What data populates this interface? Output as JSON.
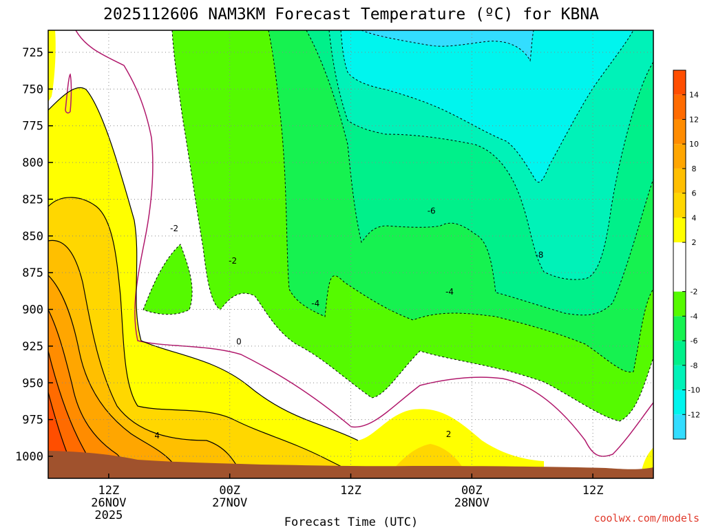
{
  "chart_data": {
    "type": "heatmap",
    "title": "2025112606 NAM3KM Forecast Temperature (ºC) for KBNA",
    "xlabel": "Forecast Time (UTC)",
    "ylabel": "",
    "credit": "coolwx.com/models",
    "x_unit": "hours since 2025-11-26 06Z",
    "xlim": [
      0,
      60
    ],
    "ylim_hpa": [
      1015,
      710
    ],
    "y_ticks": [
      725,
      750,
      775,
      800,
      825,
      850,
      875,
      900,
      925,
      950,
      975,
      1000
    ],
    "x_ticks": [
      {
        "hour": 6,
        "line1": "12Z",
        "line2": "26NOV",
        "line3": "2025"
      },
      {
        "hour": 18,
        "line1": "00Z",
        "line2": "27NOV",
        "line3": ""
      },
      {
        "hour": 30,
        "line1": "12Z",
        "line2": "",
        "line3": ""
      },
      {
        "hour": 42,
        "line1": "00Z",
        "line2": "28NOV",
        "line3": ""
      },
      {
        "hour": 54,
        "line1": "12Z",
        "line2": "",
        "line3": ""
      }
    ],
    "colorbar": {
      "levels": [
        -14,
        -12,
        -10,
        -8,
        -6,
        -4,
        -2,
        2,
        4,
        6,
        8,
        10,
        12,
        14,
        16
      ],
      "tick_labels": [
        "-12",
        "-10",
        "-8",
        "-6",
        "-4",
        "-2",
        "2",
        "4",
        "6",
        "8",
        "10",
        "12",
        "14"
      ],
      "tick_values": [
        -12,
        -10,
        -8,
        -6,
        -4,
        -2,
        2,
        4,
        6,
        8,
        10,
        12,
        14
      ],
      "colors": [
        "#33ddff",
        "#00f5ee",
        "#00f2b8",
        "#00f08a",
        "#16f250",
        "#55fa00",
        "#ffffff",
        "#ffff00",
        "#ffd700",
        "#ffbf00",
        "#ffa600",
        "#ff8c00",
        "#ff6b00",
        "#ff4e00"
      ]
    },
    "contour_labels": [
      {
        "text": "-8",
        "hour": 48.7,
        "hpa": 863
      },
      {
        "text": "-6",
        "hour": 38.0,
        "hpa": 833
      },
      {
        "text": "-4",
        "hour": 26.5,
        "hpa": 896
      },
      {
        "text": "-4",
        "hour": 39.8,
        "hpa": 888
      },
      {
        "text": "-2",
        "hour": 12.5,
        "hpa": 845
      },
      {
        "text": "-2",
        "hour": 18.3,
        "hpa": 867
      },
      {
        "text": "0",
        "hour": 18.9,
        "hpa": 922
      },
      {
        "text": "2",
        "hour": 39.7,
        "hpa": 985
      },
      {
        "text": "4",
        "hour": 10.8,
        "hpa": 986
      }
    ],
    "terrain_color": "#a0522d",
    "grid": true
  }
}
